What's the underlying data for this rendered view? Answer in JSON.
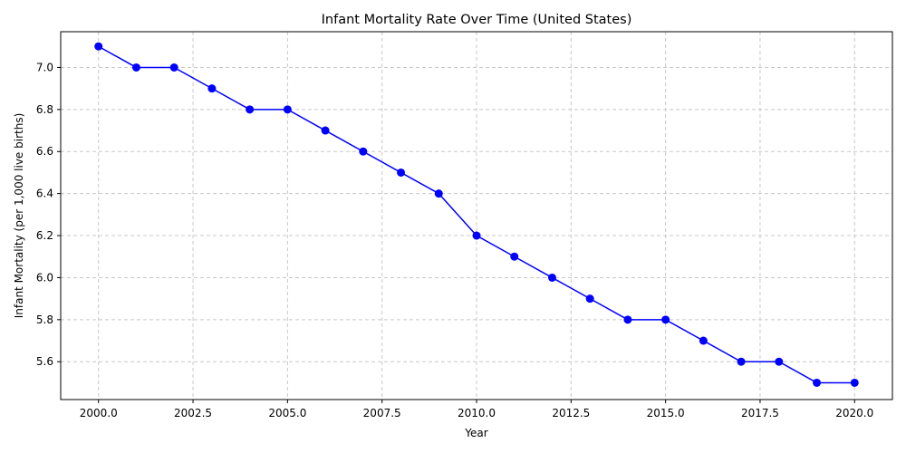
{
  "chart_data": {
    "type": "line",
    "title": "Infant Mortality Rate Over Time (United States)",
    "xlabel": "Year",
    "ylabel": "Infant Mortality (per 1,000 live births)",
    "xlim": [
      1999.0,
      2021.0
    ],
    "ylim": [
      5.42,
      7.17
    ],
    "x_ticks": [
      2000.0,
      2002.5,
      2005.0,
      2007.5,
      2010.0,
      2012.5,
      2015.0,
      2017.5,
      2020.0
    ],
    "x_tick_labels": [
      "2000.0",
      "2002.5",
      "2005.0",
      "2007.5",
      "2010.0",
      "2012.5",
      "2015.0",
      "2017.5",
      "2020.0"
    ],
    "y_ticks": [
      5.6,
      5.8,
      6.0,
      6.2,
      6.4,
      6.6,
      6.8,
      7.0
    ],
    "y_tick_labels": [
      "5.6",
      "5.8",
      "6.0",
      "6.2",
      "6.4",
      "6.6",
      "6.8",
      "7.0"
    ],
    "grid": true,
    "series": [
      {
        "color": "#0000ff",
        "marker": "circle",
        "x": [
          2000,
          2001,
          2002,
          2003,
          2004,
          2005,
          2006,
          2007,
          2008,
          2009,
          2010,
          2011,
          2012,
          2013,
          2014,
          2015,
          2016,
          2017,
          2018,
          2019,
          2020
        ],
        "y": [
          7.1,
          7.0,
          7.0,
          6.9,
          6.8,
          6.8,
          6.7,
          6.6,
          6.5,
          6.4,
          6.2,
          6.1,
          6.0,
          5.9,
          5.8,
          5.8,
          5.7,
          5.6,
          5.6,
          5.5,
          5.5
        ]
      }
    ]
  }
}
